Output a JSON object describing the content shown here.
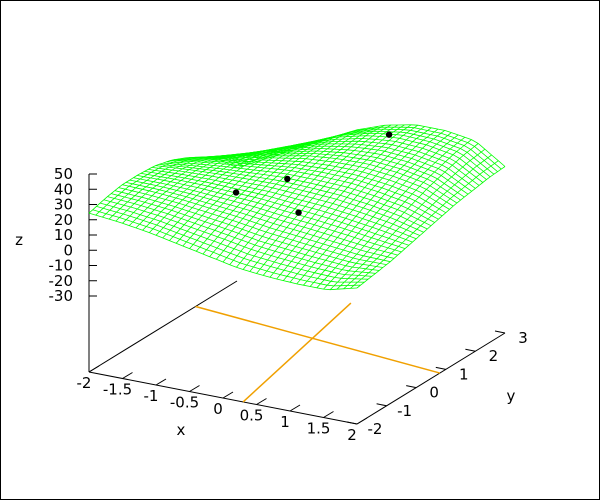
{
  "chart_data": {
    "type": "surface3d",
    "title": "",
    "xlabel": "x",
    "ylabel": "y",
    "zlabel": "z",
    "xlim": [
      -2,
      2
    ],
    "ylim": [
      -2,
      3
    ],
    "zlim": [
      -30,
      50
    ],
    "x_ticks": [
      "-2",
      "-1.5",
      "-1",
      "-0.5",
      "0",
      "0.5",
      "1",
      "1.5",
      "2"
    ],
    "y_ticks": [
      "-2",
      "-1",
      "0",
      "1",
      "2",
      "3"
    ],
    "z_ticks": [
      "50",
      "40",
      "30",
      "20",
      "10",
      "0",
      "-10",
      "-20",
      "-30"
    ],
    "grid": false,
    "legend": "none",
    "colors": {
      "surface": "#00ff00",
      "base_lines": "#f0a000",
      "points": "#000000",
      "axes": "#000000"
    },
    "series": [
      {
        "kind": "surface-mesh",
        "z_edges": {
          "x_min_edge": [
            15,
            22,
            28,
            32,
            35,
            36,
            35,
            32,
            28,
            20
          ],
          "x_max_edge": [
            0,
            -2,
            -4,
            -5,
            -6,
            -7,
            -8,
            -10,
            -12,
            -15
          ],
          "y_min_edge": [
            15,
            13,
            10,
            6,
            2,
            -2,
            -4,
            -5,
            -5,
            0
          ],
          "y_max_edge": [
            -15,
            -5,
            5,
            15,
            25,
            32,
            36,
            36,
            33,
            20
          ]
        }
      },
      {
        "kind": "scatter",
        "points": [
          {
            "x": -0.6,
            "y": -0.2,
            "z": 19
          },
          {
            "x": -0.1,
            "y": 0.4,
            "z": 25
          },
          {
            "x": 0.2,
            "y": 0.1,
            "z": 9
          },
          {
            "x": 0.8,
            "y": 1.8,
            "z": 45
          }
        ]
      },
      {
        "kind": "base-crosshair",
        "lines": [
          {
            "from": [
              -2,
              1.6
            ],
            "to": [
              2,
              0.8
            ]
          },
          {
            "from": [
              0.3,
              -2
            ],
            "to": [
              -0.3,
              3
            ]
          }
        ]
      }
    ]
  }
}
